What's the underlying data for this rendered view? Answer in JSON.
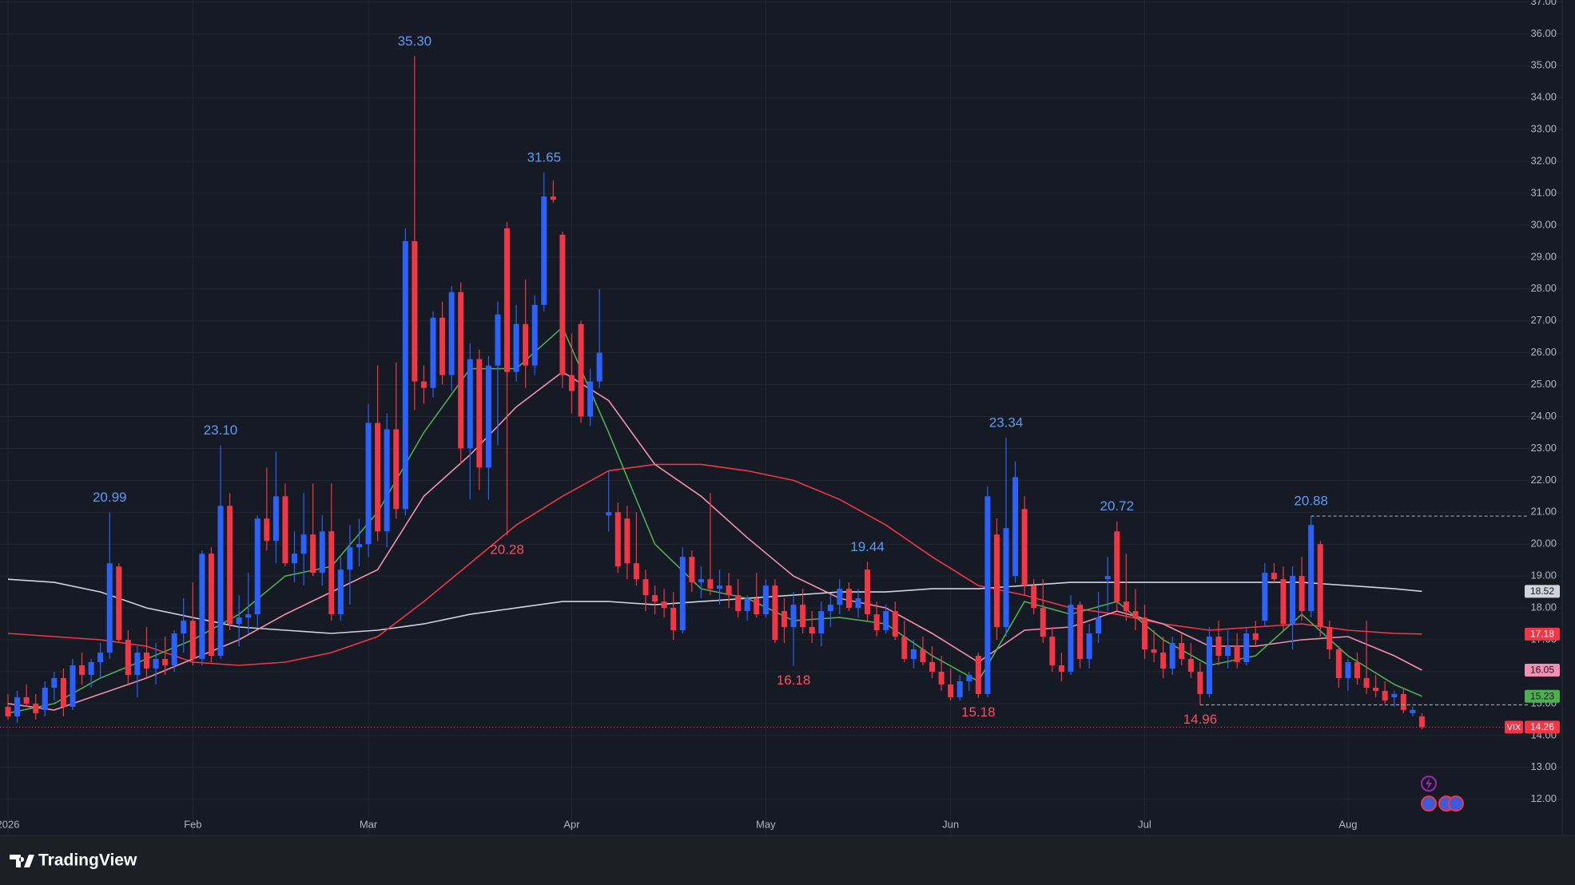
{
  "chart_data": {
    "type": "candlestick",
    "symbol": "VIX",
    "up_color": "#2962ff",
    "down_color": "#f23645",
    "high_label_color": "#5b9cf6",
    "low_label_color": "#f7525f",
    "ylim": [
      10.89,
      37.06
    ],
    "yticks": [
      {
        "value": 12,
        "label": "12.00"
      },
      {
        "value": 13,
        "label": "13.00"
      },
      {
        "value": 14,
        "label": "14.00"
      },
      {
        "value": 15,
        "label": "15.00"
      },
      {
        "value": 16,
        "label": "16.00"
      },
      {
        "value": 17,
        "label": "17.00"
      },
      {
        "value": 18,
        "label": "18.00"
      },
      {
        "value": 19,
        "label": "19.00"
      },
      {
        "value": 20,
        "label": "20.00"
      },
      {
        "value": 21,
        "label": "21.00"
      },
      {
        "value": 22,
        "label": "22.00"
      },
      {
        "value": 23,
        "label": "23.00"
      },
      {
        "value": 24,
        "label": "24.00"
      },
      {
        "value": 25,
        "label": "25.00"
      },
      {
        "value": 26,
        "label": "26.00"
      },
      {
        "value": 27,
        "label": "27.00"
      },
      {
        "value": 28,
        "label": "28.00"
      },
      {
        "value": 29,
        "label": "29.00"
      },
      {
        "value": 30,
        "label": "30.00"
      },
      {
        "value": 31,
        "label": "31.00"
      },
      {
        "value": 32,
        "label": "32.00"
      },
      {
        "value": 33,
        "label": "33.00"
      },
      {
        "value": 34,
        "label": "34.00"
      },
      {
        "value": 35,
        "label": "35.00"
      },
      {
        "value": 36,
        "label": "36.00"
      },
      {
        "value": 37,
        "label": "37.00"
      }
    ],
    "grid": true,
    "categories": [
      "2026",
      null,
      null,
      null,
      null,
      null,
      null,
      null,
      null,
      null,
      null,
      null,
      null,
      null,
      null,
      null,
      null,
      null,
      null,
      null,
      "Feb",
      null,
      null,
      null,
      null,
      null,
      null,
      null,
      null,
      null,
      null,
      null,
      null,
      null,
      null,
      null,
      null,
      null,
      null,
      "Mar",
      null,
      null,
      null,
      null,
      null,
      null,
      null,
      null,
      null,
      null,
      null,
      null,
      null,
      null,
      null,
      null,
      null,
      null,
      null,
      null,
      null,
      "Apr",
      null,
      null,
      null,
      null,
      null,
      null,
      null,
      null,
      null,
      null,
      null,
      null,
      null,
      null,
      null,
      null,
      null,
      null,
      null,
      null,
      "May",
      null,
      null,
      null,
      null,
      null,
      null,
      null,
      null,
      null,
      null,
      null,
      null,
      null,
      null,
      null,
      null,
      null,
      null,
      null,
      "Jun",
      null,
      null,
      null,
      null,
      null,
      null,
      null,
      null,
      null,
      null,
      null,
      null,
      null,
      null,
      null,
      null,
      null,
      null,
      null,
      null,
      "Jul",
      null,
      null,
      null,
      null,
      null,
      null,
      null,
      null,
      null,
      null,
      null,
      null,
      null,
      null,
      null,
      null,
      null,
      null,
      null,
      null,
      null,
      "Aug",
      null,
      null,
      null,
      null,
      null,
      null,
      null,
      null
    ],
    "candles": [
      [
        14.9,
        15.3,
        14.5,
        14.6
      ],
      [
        14.6,
        15.4,
        14.4,
        15.2
      ],
      [
        15.2,
        15.6,
        14.9,
        15.0
      ],
      [
        15.0,
        15.3,
        14.5,
        14.7
      ],
      [
        14.8,
        15.7,
        14.6,
        15.5
      ],
      [
        15.5,
        16.0,
        15.1,
        15.8
      ],
      [
        15.8,
        16.1,
        14.6,
        14.9
      ],
      [
        14.9,
        16.4,
        14.8,
        16.2
      ],
      [
        16.2,
        16.6,
        15.6,
        15.9
      ],
      [
        15.9,
        16.4,
        15.5,
        16.3
      ],
      [
        16.3,
        16.9,
        15.8,
        16.6
      ],
      [
        16.6,
        20.99,
        16.4,
        19.4
      ],
      [
        19.3,
        19.4,
        16.9,
        17.0
      ],
      [
        17.0,
        17.3,
        15.6,
        15.9
      ],
      [
        15.9,
        16.8,
        15.2,
        16.6
      ],
      [
        16.6,
        17.4,
        15.8,
        16.1
      ],
      [
        16.1,
        16.9,
        15.6,
        16.4
      ],
      [
        16.4,
        17.1,
        15.9,
        16.2
      ],
      [
        16.2,
        17.3,
        16.0,
        17.2
      ],
      [
        17.2,
        18.3,
        16.6,
        17.6
      ],
      [
        17.6,
        18.8,
        16.2,
        16.4
      ],
      [
        16.4,
        19.8,
        16.2,
        19.7
      ],
      [
        19.7,
        19.9,
        16.3,
        16.5
      ],
      [
        16.5,
        23.1,
        16.4,
        21.2
      ],
      [
        21.2,
        21.6,
        17.3,
        17.5
      ],
      [
        17.5,
        18.4,
        16.8,
        17.7
      ],
      [
        17.7,
        19.1,
        17.2,
        17.8
      ],
      [
        17.8,
        20.9,
        17.4,
        20.8
      ],
      [
        20.8,
        22.4,
        19.8,
        20.1
      ],
      [
        20.1,
        22.9,
        19.4,
        21.5
      ],
      [
        21.5,
        21.9,
        19.3,
        19.4
      ],
      [
        19.4,
        20.4,
        18.8,
        19.7
      ],
      [
        19.7,
        21.6,
        18.7,
        20.3
      ],
      [
        20.3,
        21.9,
        19.0,
        19.1
      ],
      [
        19.1,
        20.9,
        18.7,
        20.4
      ],
      [
        20.4,
        21.9,
        17.6,
        17.8
      ],
      [
        17.8,
        19.6,
        17.6,
        19.2
      ],
      [
        19.2,
        20.6,
        18.1,
        19.9
      ],
      [
        19.9,
        20.8,
        19.3,
        20.0
      ],
      [
        20.0,
        24.4,
        19.6,
        23.8
      ],
      [
        23.8,
        25.6,
        20.1,
        20.4
      ],
      [
        20.4,
        24.1,
        19.9,
        23.6
      ],
      [
        23.6,
        25.7,
        20.8,
        21.1
      ],
      [
        21.1,
        29.9,
        20.9,
        29.5
      ],
      [
        29.5,
        35.3,
        24.2,
        25.1
      ],
      [
        25.1,
        25.6,
        24.4,
        24.9
      ],
      [
        24.9,
        27.3,
        24.6,
        27.1
      ],
      [
        27.1,
        27.6,
        25.0,
        25.3
      ],
      [
        25.3,
        28.1,
        24.8,
        27.9
      ],
      [
        27.9,
        28.2,
        22.5,
        23.0
      ],
      [
        23.0,
        26.3,
        21.4,
        25.8
      ],
      [
        25.8,
        26.1,
        21.7,
        22.4
      ],
      [
        22.4,
        25.9,
        21.4,
        25.6
      ],
      [
        25.6,
        27.6,
        23.1,
        27.2
      ],
      [
        29.9,
        30.1,
        20.28,
        25.4
      ],
      [
        25.4,
        27.5,
        25.1,
        26.9
      ],
      [
        26.9,
        28.3,
        24.9,
        25.6
      ],
      [
        25.6,
        27.8,
        25.3,
        27.5
      ],
      [
        27.5,
        31.65,
        27.3,
        30.9
      ],
      [
        30.9,
        31.4,
        30.7,
        30.8
      ],
      [
        29.7,
        29.8,
        24.9,
        25.3
      ],
      [
        25.3,
        26.6,
        24.1,
        24.8
      ],
      [
        26.9,
        27.0,
        23.8,
        24.0
      ],
      [
        24.0,
        25.5,
        23.7,
        25.1
      ],
      [
        25.1,
        28.0,
        24.9,
        26.0
      ],
      [
        20.9,
        22.3,
        20.4,
        21.0
      ],
      [
        21.0,
        21.3,
        19.1,
        19.3
      ],
      [
        20.8,
        21.2,
        18.9,
        19.4
      ],
      [
        19.4,
        21.0,
        18.7,
        18.9
      ],
      [
        18.9,
        19.2,
        17.9,
        18.4
      ],
      [
        18.4,
        18.7,
        17.8,
        18.2
      ],
      [
        18.2,
        18.6,
        17.7,
        18.0
      ],
      [
        18.0,
        18.5,
        17.0,
        17.3
      ],
      [
        17.3,
        19.9,
        17.2,
        19.6
      ],
      [
        19.6,
        19.8,
        18.5,
        18.8
      ],
      [
        18.8,
        19.3,
        18.3,
        18.9
      ],
      [
        18.9,
        21.6,
        18.4,
        18.6
      ],
      [
        18.6,
        19.2,
        18.1,
        18.7
      ],
      [
        18.7,
        19.1,
        18.0,
        18.4
      ],
      [
        18.4,
        18.9,
        17.7,
        17.9
      ],
      [
        17.9,
        18.4,
        17.6,
        18.3
      ],
      [
        18.3,
        19.1,
        17.7,
        17.8
      ],
      [
        17.8,
        18.9,
        17.7,
        18.7
      ],
      [
        18.7,
        18.9,
        16.9,
        17.0
      ],
      [
        17.9,
        18.3,
        16.9,
        17.4
      ],
      [
        17.4,
        18.5,
        16.18,
        18.1
      ],
      [
        18.1,
        18.6,
        17.2,
        17.4
      ],
      [
        17.4,
        17.9,
        16.9,
        17.2
      ],
      [
        17.2,
        18.2,
        16.8,
        17.9
      ],
      [
        17.9,
        18.4,
        17.4,
        18.1
      ],
      [
        18.1,
        18.9,
        17.8,
        18.6
      ],
      [
        18.6,
        18.8,
        17.9,
        18.0
      ],
      [
        18.0,
        18.6,
        17.7,
        18.3
      ],
      [
        19.2,
        19.44,
        17.6,
        17.8
      ],
      [
        17.8,
        18.2,
        17.1,
        17.3
      ],
      [
        17.3,
        18.1,
        17.2,
        17.9
      ],
      [
        17.9,
        18.2,
        17.0,
        17.1
      ],
      [
        17.1,
        17.6,
        16.3,
        16.4
      ],
      [
        16.4,
        17.0,
        16.1,
        16.7
      ],
      [
        16.7,
        17.1,
        16.2,
        16.3
      ],
      [
        16.3,
        16.8,
        15.8,
        16.0
      ],
      [
        16.0,
        16.5,
        15.4,
        15.6
      ],
      [
        15.6,
        16.1,
        15.1,
        15.2
      ],
      [
        15.2,
        15.9,
        15.1,
        15.7
      ],
      [
        15.7,
        16.0,
        15.4,
        15.9
      ],
      [
        16.5,
        16.6,
        15.18,
        15.3
      ],
      [
        15.3,
        21.8,
        15.2,
        21.5
      ],
      [
        20.3,
        20.8,
        17.0,
        17.4
      ],
      [
        17.4,
        23.34,
        17.1,
        20.5
      ],
      [
        19.0,
        22.6,
        18.8,
        22.1
      ],
      [
        21.1,
        21.5,
        18.4,
        18.7
      ],
      [
        18.7,
        18.9,
        17.8,
        18.0
      ],
      [
        18.0,
        18.9,
        16.9,
        17.1
      ],
      [
        17.1,
        17.4,
        16.0,
        16.2
      ],
      [
        16.2,
        16.6,
        15.7,
        16.0
      ],
      [
        16.0,
        18.4,
        15.9,
        18.1
      ],
      [
        18.1,
        18.2,
        16.1,
        16.4
      ],
      [
        16.4,
        17.5,
        16.1,
        17.2
      ],
      [
        17.2,
        18.5,
        16.9,
        17.7
      ],
      [
        18.9,
        19.6,
        17.9,
        19.0
      ],
      [
        20.4,
        20.72,
        17.9,
        18.2
      ],
      [
        18.2,
        19.7,
        17.6,
        17.9
      ],
      [
        17.9,
        18.6,
        17.3,
        17.7
      ],
      [
        17.7,
        18.1,
        16.4,
        16.7
      ],
      [
        16.7,
        17.3,
        16.3,
        16.6
      ],
      [
        16.6,
        17.1,
        15.8,
        16.1
      ],
      [
        16.1,
        17.1,
        15.9,
        16.9
      ],
      [
        16.9,
        17.2,
        16.2,
        16.4
      ],
      [
        16.4,
        16.9,
        15.8,
        16.0
      ],
      [
        16.0,
        16.3,
        14.96,
        15.3
      ],
      [
        15.3,
        17.4,
        15.2,
        17.1
      ],
      [
        17.1,
        17.6,
        16.2,
        16.5
      ],
      [
        16.5,
        17.3,
        16.1,
        16.8
      ],
      [
        16.8,
        17.2,
        16.1,
        16.3
      ],
      [
        16.3,
        17.4,
        16.2,
        17.2
      ],
      [
        17.2,
        17.6,
        16.8,
        17.0
      ],
      [
        17.6,
        19.4,
        17.4,
        19.1
      ],
      [
        19.1,
        19.4,
        18.8,
        18.9
      ],
      [
        18.9,
        19.3,
        17.3,
        17.5
      ],
      [
        17.5,
        19.3,
        16.7,
        19.0
      ],
      [
        19.0,
        19.6,
        17.6,
        17.9
      ],
      [
        17.9,
        20.88,
        17.7,
        20.6
      ],
      [
        20.0,
        20.1,
        17.1,
        17.4
      ],
      [
        17.4,
        17.6,
        16.4,
        16.7
      ],
      [
        16.7,
        16.8,
        15.5,
        15.8
      ],
      [
        15.8,
        16.4,
        15.4,
        16.3
      ],
      [
        16.3,
        16.6,
        15.6,
        15.8
      ],
      [
        15.8,
        17.6,
        15.3,
        15.5
      ],
      [
        15.5,
        15.9,
        15.2,
        15.4
      ],
      [
        15.4,
        15.7,
        15.0,
        15.1
      ],
      [
        15.2,
        15.4,
        14.9,
        15.3
      ],
      [
        15.3,
        15.5,
        14.7,
        14.8
      ],
      [
        14.7,
        14.9,
        14.6,
        14.8
      ],
      [
        14.6,
        14.7,
        14.2,
        14.26
      ]
    ],
    "hl_labels": [
      {
        "candle": 11,
        "label": "20.99",
        "type": "high"
      },
      {
        "candle": 23,
        "label": "23.10",
        "type": "high"
      },
      {
        "candle": 44,
        "label": "35.30",
        "type": "high"
      },
      {
        "candle": 54,
        "label": "20.28",
        "type": "low"
      },
      {
        "candle": 58,
        "label": "31.65",
        "type": "high"
      },
      {
        "candle": 85,
        "label": "16.18",
        "type": "low"
      },
      {
        "candle": 93,
        "label": "19.44",
        "type": "high"
      },
      {
        "candle": 105,
        "label": "15.18",
        "type": "low"
      },
      {
        "candle": 108,
        "label": "23.34",
        "type": "high"
      },
      {
        "candle": 120,
        "label": "20.72",
        "type": "high"
      },
      {
        "candle": 129,
        "label": "14.96",
        "type": "low",
        "line": true
      },
      {
        "candle": 141,
        "label": "20.88",
        "type": "high",
        "line": true
      }
    ],
    "ma_x": [
      0,
      5,
      10,
      15,
      20,
      25,
      30,
      35,
      40,
      45,
      50,
      55,
      60,
      65,
      70,
      75,
      80,
      85,
      90,
      95,
      100,
      105,
      110,
      115,
      120,
      125,
      130,
      135,
      140,
      145,
      150,
      153
    ],
    "ma_series": [
      {
        "color": "#d1d4dc",
        "text_color": "#131722",
        "values": [
          18.9,
          18.8,
          18.5,
          18.0,
          17.7,
          17.4,
          17.3,
          17.2,
          17.3,
          17.5,
          17.8,
          18.0,
          18.2,
          18.2,
          18.1,
          18.2,
          18.3,
          18.4,
          18.5,
          18.5,
          18.6,
          18.6,
          18.7,
          18.8,
          18.8,
          18.8,
          18.8,
          18.8,
          18.8,
          18.7,
          18.6,
          18.52
        ]
      },
      {
        "color": "#f23645",
        "text_color": "#ffffff",
        "values": [
          17.2,
          17.1,
          17.0,
          16.8,
          16.3,
          16.2,
          16.3,
          16.6,
          17.1,
          18.2,
          19.4,
          20.6,
          21.5,
          22.3,
          22.5,
          22.5,
          22.3,
          22.0,
          21.4,
          20.6,
          19.6,
          18.7,
          18.4,
          18.0,
          17.8,
          17.5,
          17.3,
          17.4,
          17.5,
          17.3,
          17.2,
          17.18
        ]
      },
      {
        "color": "#f48fb1",
        "text_color": "#131722",
        "values": [
          15.0,
          14.8,
          15.3,
          15.8,
          16.4,
          17.0,
          17.8,
          18.5,
          19.2,
          21.5,
          22.8,
          24.3,
          25.4,
          24.5,
          22.5,
          21.5,
          20.2,
          19.0,
          18.3,
          18.0,
          17.2,
          16.3,
          17.3,
          17.4,
          17.9,
          17.5,
          16.8,
          16.8,
          17.0,
          17.1,
          16.5,
          16.05
        ]
      },
      {
        "color": "#4caf50",
        "text_color": "#131722",
        "values": [
          14.7,
          15.0,
          15.8,
          16.4,
          17.0,
          17.8,
          19.0,
          19.3,
          21.0,
          23.5,
          25.5,
          25.5,
          26.8,
          23.5,
          20.0,
          18.6,
          18.3,
          17.6,
          17.7,
          17.5,
          16.5,
          15.7,
          18.2,
          17.8,
          18.2,
          17.0,
          16.2,
          16.5,
          17.8,
          16.5,
          15.6,
          15.23
        ]
      }
    ]
  },
  "footer": {
    "brand": "TradingView"
  }
}
